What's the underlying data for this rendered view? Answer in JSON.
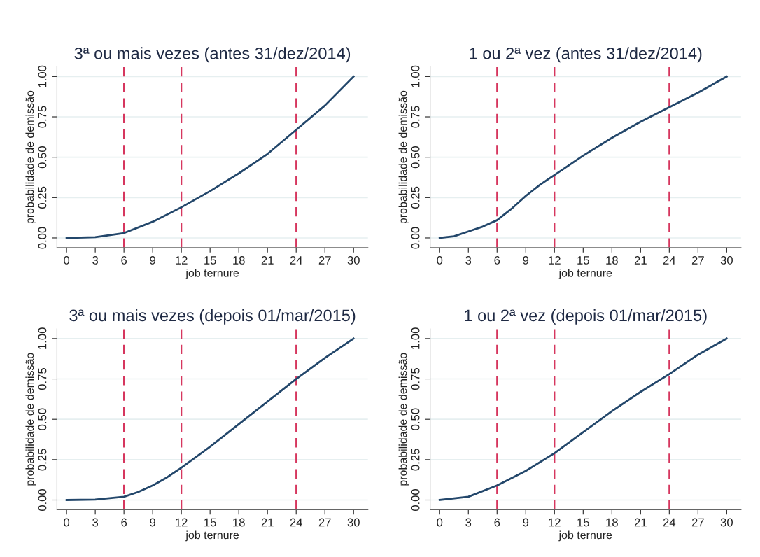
{
  "chart_data": [
    {
      "type": "line",
      "title": "3ª ou mais vezes (antes 31/dez/2014)",
      "xlabel": "job ternure",
      "ylabel": "probabilidade de demissão",
      "xlim": [
        -1,
        31.5
      ],
      "ylim": [
        -0.06,
        1.06
      ],
      "xticks": [
        0,
        3,
        6,
        9,
        12,
        15,
        18,
        21,
        24,
        27,
        30
      ],
      "yticks": [
        {
          "value": 0,
          "label": "0.00"
        },
        {
          "value": 0.25,
          "label": "0.25"
        },
        {
          "value": 0.5,
          "label": "0.50"
        },
        {
          "value": 0.75,
          "label": "0.75"
        },
        {
          "value": 1,
          "label": "1.00"
        }
      ],
      "grid": "y",
      "marker": "none",
      "line_style": "solid",
      "ref_lines": [
        {
          "axis": "x",
          "value": 6,
          "color": "#d6365e",
          "line_style": "dashed"
        },
        {
          "axis": "x",
          "value": 12,
          "color": "#d6365e",
          "line_style": "dashed"
        },
        {
          "axis": "x",
          "value": 24,
          "color": "#d6365e",
          "line_style": "dashed"
        }
      ],
      "x": [
        0,
        3,
        6,
        9,
        12,
        15,
        18,
        21,
        24,
        27,
        30
      ],
      "series": [
        {
          "color": "#23476b",
          "values": [
            0,
            0.005,
            0.03,
            0.1,
            0.19,
            0.29,
            0.4,
            0.52,
            0.67,
            0.82,
            1.0
          ]
        }
      ]
    },
    {
      "type": "line",
      "title": "1 ou 2ª vez (antes 31/dez/2014)",
      "xlabel": "job ternure",
      "ylabel": "probabilidade de demissão",
      "xlim": [
        -1,
        31.5
      ],
      "ylim": [
        -0.06,
        1.06
      ],
      "xticks": [
        0,
        3,
        6,
        9,
        12,
        15,
        18,
        21,
        24,
        27,
        30
      ],
      "yticks": [
        {
          "value": 0,
          "label": "0.00"
        },
        {
          "value": 0.25,
          "label": "0.25"
        },
        {
          "value": 0.5,
          "label": "0.50"
        },
        {
          "value": 0.75,
          "label": "0.75"
        },
        {
          "value": 1,
          "label": "1.00"
        }
      ],
      "grid": "y",
      "marker": "none",
      "line_style": "solid",
      "ref_lines": [
        {
          "axis": "x",
          "value": 6,
          "color": "#d6365e",
          "line_style": "dashed"
        },
        {
          "axis": "x",
          "value": 12,
          "color": "#d6365e",
          "line_style": "dashed"
        },
        {
          "axis": "x",
          "value": 24,
          "color": "#d6365e",
          "line_style": "dashed"
        }
      ],
      "x": [
        0,
        1.5,
        3,
        4.5,
        6,
        7.5,
        9,
        10.5,
        12,
        15,
        18,
        21,
        24,
        27,
        30
      ],
      "series": [
        {
          "color": "#23476b",
          "values": [
            0,
            0.01,
            0.04,
            0.07,
            0.11,
            0.18,
            0.26,
            0.33,
            0.39,
            0.51,
            0.62,
            0.72,
            0.81,
            0.9,
            1.0
          ]
        }
      ]
    },
    {
      "type": "line",
      "title": "3ª ou mais vezes (depois 01/mar/2015)",
      "xlabel": "job ternure",
      "ylabel": "probabilidade de demissão",
      "xlim": [
        -1,
        31.5
      ],
      "ylim": [
        -0.06,
        1.06
      ],
      "xticks": [
        0,
        3,
        6,
        9,
        12,
        15,
        18,
        21,
        24,
        27,
        30
      ],
      "yticks": [
        {
          "value": 0,
          "label": "0.00"
        },
        {
          "value": 0.25,
          "label": "0.25"
        },
        {
          "value": 0.5,
          "label": "0.50"
        },
        {
          "value": 0.75,
          "label": "0.75"
        },
        {
          "value": 1,
          "label": "1.00"
        }
      ],
      "grid": "y",
      "marker": "none",
      "line_style": "solid",
      "ref_lines": [
        {
          "axis": "x",
          "value": 6,
          "color": "#d6365e",
          "line_style": "dashed"
        },
        {
          "axis": "x",
          "value": 12,
          "color": "#d6365e",
          "line_style": "dashed"
        },
        {
          "axis": "x",
          "value": 24,
          "color": "#d6365e",
          "line_style": "dashed"
        }
      ],
      "x": [
        0,
        3,
        6,
        7.5,
        9,
        10.5,
        12,
        15,
        18,
        21,
        24,
        27,
        30
      ],
      "series": [
        {
          "color": "#23476b",
          "values": [
            0,
            0.003,
            0.02,
            0.05,
            0.09,
            0.14,
            0.2,
            0.33,
            0.47,
            0.61,
            0.75,
            0.88,
            1.0
          ]
        }
      ]
    },
    {
      "type": "line",
      "title": "1 ou 2ª vez (depois 01/mar/2015)",
      "xlabel": "job ternure",
      "ylabel": "probabilidade de demissão",
      "xlim": [
        -1,
        31.5
      ],
      "ylim": [
        -0.06,
        1.06
      ],
      "xticks": [
        0,
        3,
        6,
        9,
        12,
        15,
        18,
        21,
        24,
        27,
        30
      ],
      "yticks": [
        {
          "value": 0,
          "label": "0.00"
        },
        {
          "value": 0.25,
          "label": "0.25"
        },
        {
          "value": 0.5,
          "label": "0.50"
        },
        {
          "value": 0.75,
          "label": "0.75"
        },
        {
          "value": 1,
          "label": "1.00"
        }
      ],
      "grid": "y",
      "marker": "none",
      "line_style": "solid",
      "ref_lines": [
        {
          "axis": "x",
          "value": 6,
          "color": "#d6365e",
          "line_style": "dashed"
        },
        {
          "axis": "x",
          "value": 12,
          "color": "#d6365e",
          "line_style": "dashed"
        },
        {
          "axis": "x",
          "value": 24,
          "color": "#d6365e",
          "line_style": "dashed"
        }
      ],
      "x": [
        0,
        3,
        6,
        9,
        12,
        15,
        18,
        21,
        24,
        27,
        30
      ],
      "series": [
        {
          "color": "#23476b",
          "values": [
            0,
            0.02,
            0.09,
            0.18,
            0.29,
            0.42,
            0.55,
            0.67,
            0.78,
            0.9,
            1.0
          ]
        }
      ]
    }
  ]
}
